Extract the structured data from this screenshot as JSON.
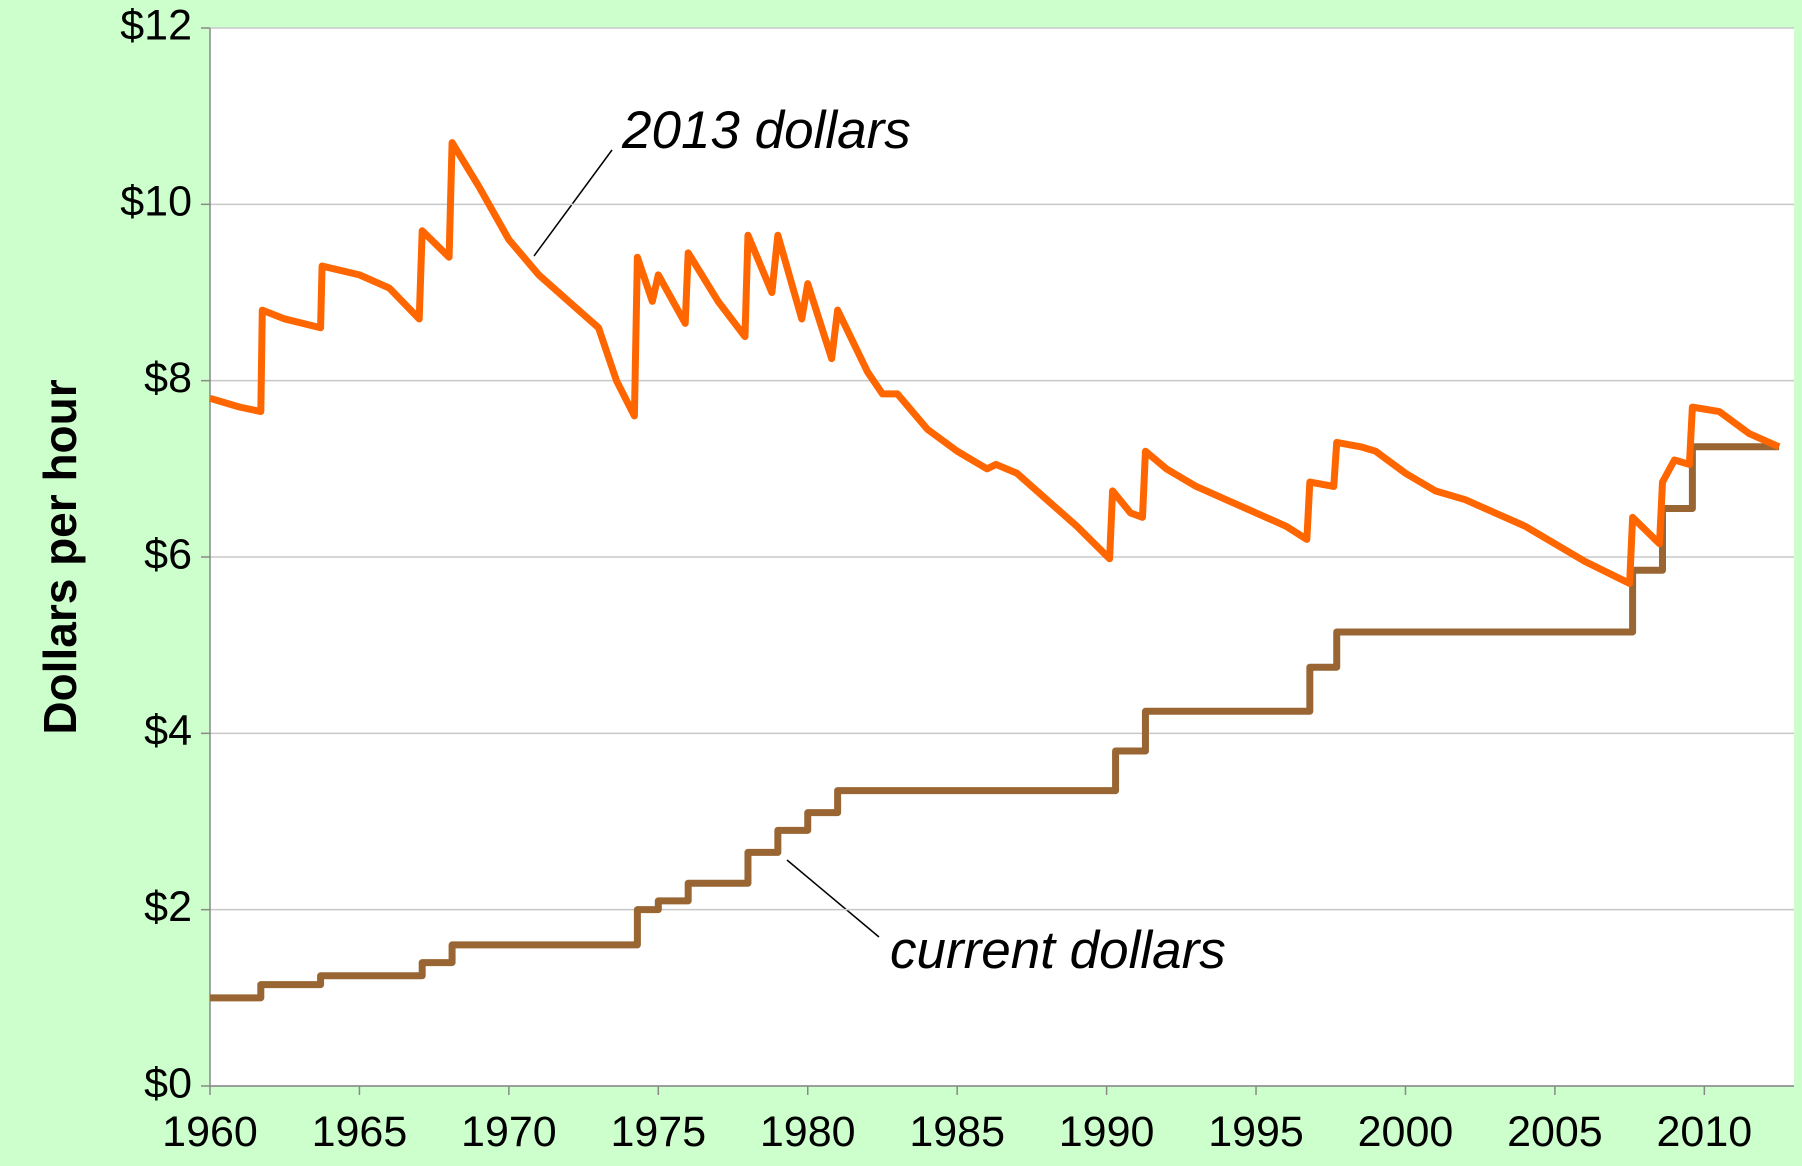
{
  "chart_data": {
    "type": "line",
    "ylabel": "Dollars per hour",
    "xlim": [
      1960,
      2013
    ],
    "xticks": [
      1960,
      1965,
      1970,
      1975,
      1980,
      1985,
      1990,
      1995,
      2000,
      2005,
      2010
    ],
    "ylim": [
      0,
      12
    ],
    "yticks": [
      {
        "value": 0,
        "label": "$0"
      },
      {
        "value": 2,
        "label": "$2"
      },
      {
        "value": 4,
        "label": "$4"
      },
      {
        "value": 6,
        "label": "$6"
      },
      {
        "value": 8,
        "label": "$8"
      },
      {
        "value": 10,
        "label": "$10"
      },
      {
        "value": 12,
        "label": "$12"
      }
    ],
    "grid": true,
    "series": [
      {
        "name": "2013 dollars",
        "color": "#ff6600",
        "step": false,
        "x": [
          1960,
          1960.5,
          1961,
          1961.7,
          1961.75,
          1962.5,
          1963.7,
          1963.75,
          1965,
          1966,
          1967.0,
          1967.1,
          1968.0,
          1968.1,
          1969,
          1970,
          1971,
          1972,
          1973,
          1973.6,
          1974.2,
          1974.3,
          1974.8,
          1975,
          1975.9,
          1976,
          1977,
          1977.9,
          1978,
          1978.8,
          1979,
          1979.8,
          1980,
          1980.8,
          1981,
          1982,
          1982.5,
          1983,
          1984,
          1985,
          1986,
          1986.3,
          1987,
          1988,
          1989,
          1990.1,
          1990.2,
          1990.8,
          1991.2,
          1991.3,
          1992,
          1993,
          1994,
          1995,
          1996,
          1996.7,
          1996.8,
          1997.6,
          1997.7,
          1998.5,
          1999,
          2000,
          2001,
          2002,
          2003,
          2004,
          2005,
          2006,
          2007.5,
          2007.6,
          2008.5,
          2008.6,
          2009,
          2009.5,
          2009.6,
          2010.5,
          2011.5,
          2012.5
        ],
        "values": [
          7.8,
          7.75,
          7.7,
          7.65,
          8.8,
          8.7,
          8.6,
          9.3,
          9.2,
          9.05,
          8.7,
          9.7,
          9.4,
          10.7,
          10.2,
          9.6,
          9.2,
          8.9,
          8.6,
          8.0,
          7.6,
          9.4,
          8.9,
          9.2,
          8.65,
          9.45,
          8.9,
          8.5,
          9.65,
          9.0,
          9.65,
          8.7,
          9.1,
          8.25,
          8.8,
          8.1,
          7.85,
          7.85,
          7.45,
          7.2,
          7.0,
          7.05,
          6.95,
          6.65,
          6.35,
          5.98,
          6.75,
          6.5,
          6.45,
          7.2,
          7.0,
          6.8,
          6.65,
          6.5,
          6.35,
          6.2,
          6.85,
          6.8,
          7.3,
          7.25,
          7.2,
          6.95,
          6.75,
          6.65,
          6.5,
          6.35,
          6.15,
          5.95,
          5.7,
          6.45,
          6.15,
          6.85,
          7.1,
          7.05,
          7.7,
          7.65,
          7.4,
          7.25
        ]
      },
      {
        "name": "current dollars",
        "color": "#996633",
        "step": true,
        "x": [
          1960,
          1961.7,
          1963.7,
          1967.1,
          1968.1,
          1974.3,
          1975,
          1976,
          1978,
          1979,
          1980,
          1981,
          1990.3,
          1991.3,
          1996.8,
          1997.7,
          2007.6,
          2008.6,
          2009.6,
          2012.5
        ],
        "values": [
          1.0,
          1.15,
          1.25,
          1.4,
          1.6,
          2.0,
          2.1,
          2.3,
          2.65,
          2.9,
          3.1,
          3.35,
          3.8,
          4.25,
          4.75,
          5.15,
          5.85,
          6.55,
          7.25,
          7.25
        ]
      }
    ]
  }
}
